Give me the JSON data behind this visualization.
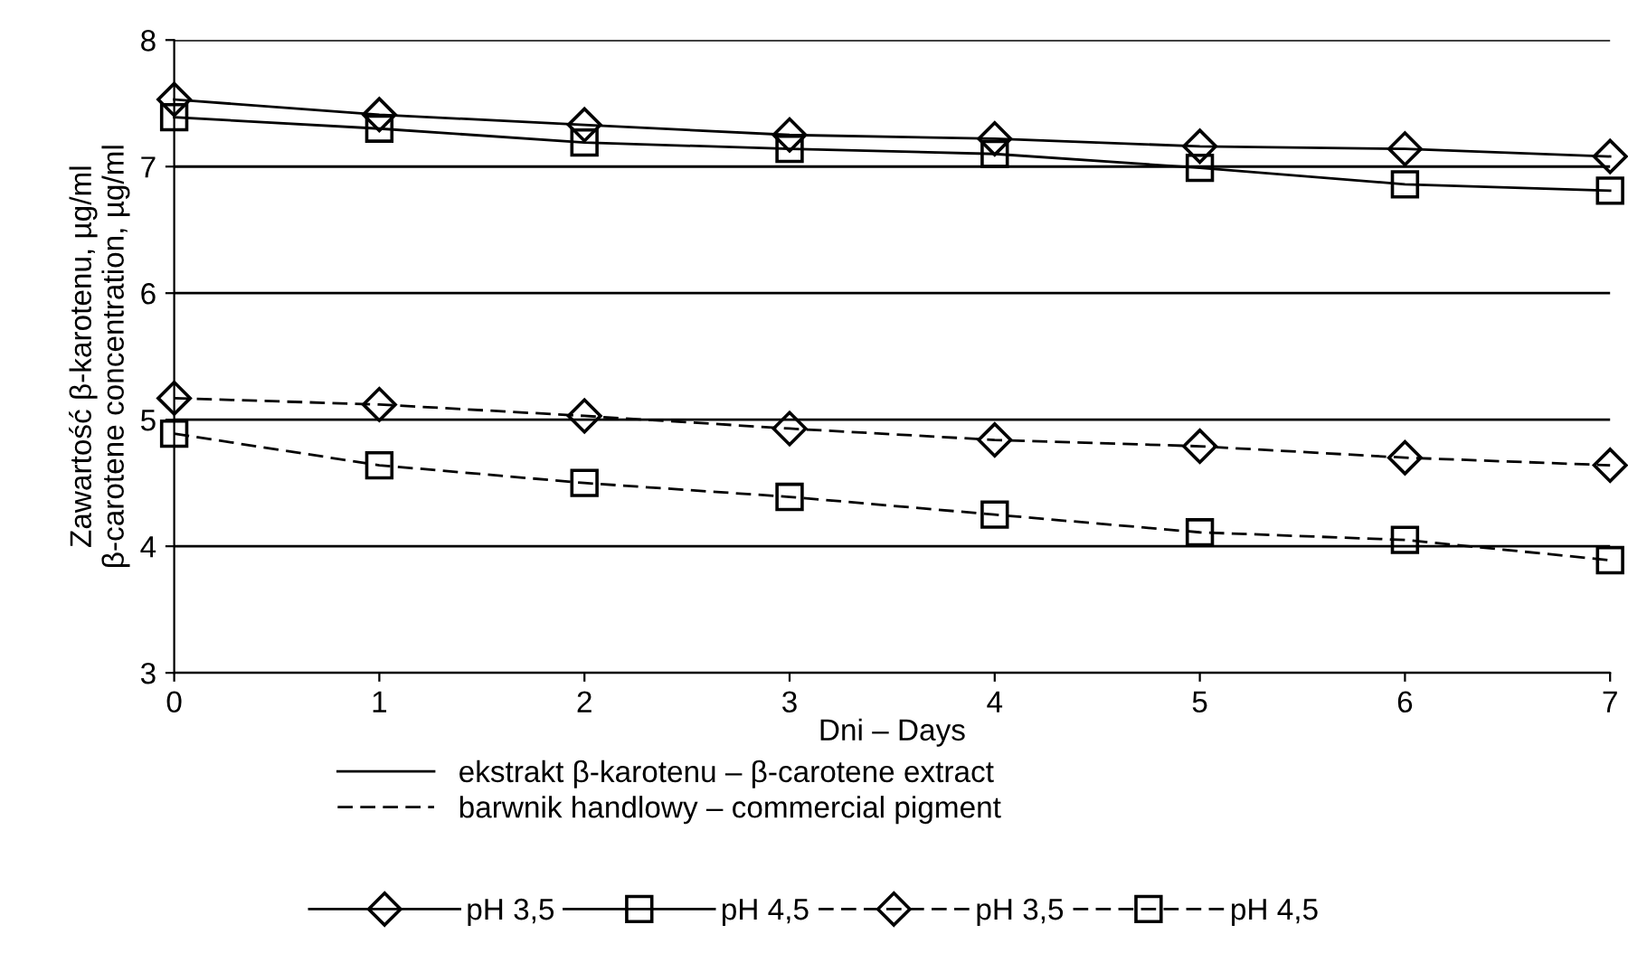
{
  "chart_data": {
    "type": "line",
    "xlabel": "Dni – Days",
    "ylabel": "Zawartość β-karotenu, µg/ml\nβ-carotene concentration, µg/ml",
    "x": [
      0,
      1,
      2,
      3,
      4,
      5,
      6,
      7
    ],
    "series": [
      {
        "name": "pH 3,5",
        "color": "#000000",
        "line_style": "solid",
        "marker": "diamond",
        "values": [
          7.53,
          7.41,
          7.33,
          7.25,
          7.22,
          7.16,
          7.14,
          7.08
        ]
      },
      {
        "name": "pH 4,5",
        "color": "#000000",
        "line_style": "solid",
        "marker": "square",
        "values": [
          7.39,
          7.3,
          7.19,
          7.14,
          7.1,
          6.99,
          6.86,
          6.81
        ]
      },
      {
        "name": "pH 3,5",
        "color": "#000000",
        "line_style": "dashed",
        "marker": "diamond",
        "values": [
          5.17,
          5.12,
          5.03,
          4.93,
          4.84,
          4.79,
          4.7,
          4.64
        ]
      },
      {
        "name": "pH 4,5",
        "color": "#000000",
        "line_style": "dashed",
        "marker": "square",
        "values": [
          4.89,
          4.64,
          4.5,
          4.39,
          4.25,
          4.11,
          4.05,
          3.89
        ]
      }
    ],
    "annotations": [
      "ekstrakt β-karotenu – β-carotene extract",
      "barwnik handlowy – commercial pigment"
    ],
    "xlim": [
      0,
      7
    ],
    "xticks": [
      0,
      1,
      2,
      3,
      4,
      5,
      6,
      7
    ],
    "ylim": [
      3,
      8
    ],
    "yticks": [
      3,
      4,
      5,
      6,
      7,
      8
    ],
    "grid": "y",
    "legend": "bottom"
  }
}
